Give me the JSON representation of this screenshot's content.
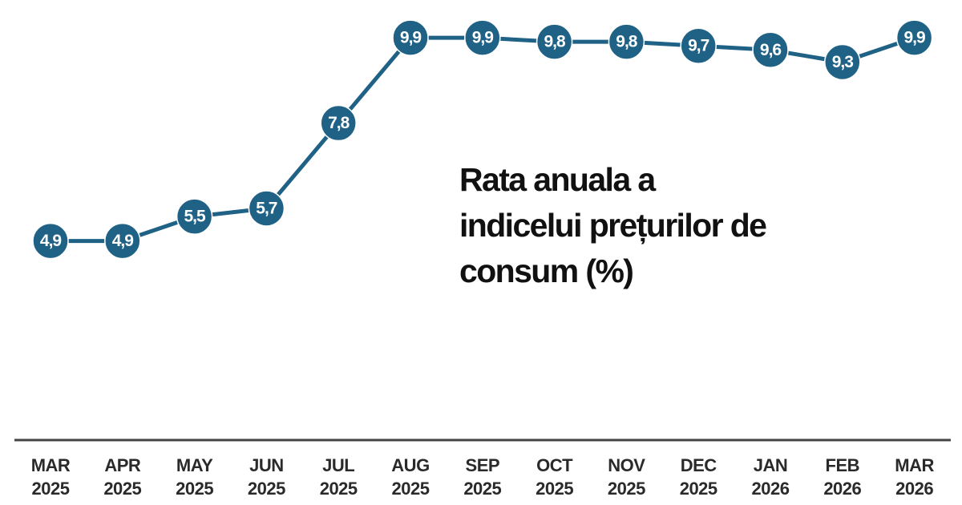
{
  "chart_data": {
    "type": "line",
    "title": "Rata anuala a indicelui prețurilor de consum (%)",
    "categories": [
      "MAR 2025",
      "APR 2025",
      "MAY 2025",
      "JUN 2025",
      "JUL 2025",
      "AUG 2025",
      "SEP 2025",
      "OCT 2025",
      "NOV 2025",
      "DEC 2025",
      "JAN 2026",
      "FEB 2026",
      "MAR 2026"
    ],
    "series": [
      {
        "color": "#1f6286",
        "values": [
          4.9,
          4.9,
          5.5,
          5.7,
          7.8,
          9.9,
          9.9,
          9.8,
          9.8,
          9.7,
          9.6,
          9.3,
          9.9
        ],
        "value_labels": [
          "4,9",
          "4,9",
          "5,5",
          "5,7",
          "7,8",
          "9,9",
          "9,9",
          "9,8",
          "9,8",
          "9,7",
          "9,6",
          "9,3",
          "9,9"
        ]
      }
    ],
    "ylim": [
      0,
      10
    ]
  }
}
